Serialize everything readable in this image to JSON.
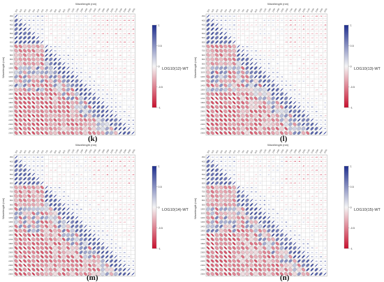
{
  "figure": {
    "panels": [
      {
        "label": "(k)",
        "legend_title": "LOG10(12)-WT"
      },
      {
        "label": "(l)",
        "legend_title": "LOG10(13)-WT"
      },
      {
        "label": "(m)",
        "legend_title": "LOG10(14)-WT"
      },
      {
        "label": "(n)",
        "legend_title": "LOG10(15)-WT"
      }
    ],
    "x_axis_title": "Wavelength (nm)",
    "y_axis_title": "Wavelength (nm)",
    "wavelengths": [
      "350",
      "400",
      "450",
      "500",
      "550",
      "600",
      "650",
      "700",
      "750",
      "800",
      "850",
      "900",
      "1000",
      "1100",
      "1200",
      "1300",
      "1400",
      "1500",
      "1600",
      "1700",
      "1800",
      "1900",
      "2000",
      "2100",
      "2200",
      "2300",
      "2400",
      "2500"
    ],
    "colorbar_ticks": [
      "1",
      "0.5",
      "0",
      "-0.5",
      "-1"
    ],
    "colors": {
      "positive": "#1f2f8f",
      "neutral": "#f4f4f4",
      "negative": "#c8102e"
    }
  },
  "chart_data": [
    {
      "type": "heatmap",
      "title": "",
      "legend_title": "LOG10(12)-WT",
      "xlabel": "Wavelength (nm)",
      "ylabel": "Wavelength (nm)",
      "color_range": [
        -1,
        1
      ],
      "matrix_size": 28,
      "lower_triangle": "ellipses",
      "upper_triangle": "correlation coefficients",
      "seed": 11
    },
    {
      "type": "heatmap",
      "title": "",
      "legend_title": "LOG10(13)-WT",
      "xlabel": "Wavelength (nm)",
      "ylabel": "Wavelength (nm)",
      "color_range": [
        -1,
        1
      ],
      "matrix_size": 28,
      "lower_triangle": "ellipses",
      "upper_triangle": "correlation coefficients",
      "seed": 23
    },
    {
      "type": "heatmap",
      "title": "",
      "legend_title": "LOG10(14)-WT",
      "xlabel": "Wavelength (nm)",
      "ylabel": "Wavelength (nm)",
      "color_range": [
        -1,
        1
      ],
      "matrix_size": 28,
      "lower_triangle": "ellipses",
      "upper_triangle": "correlation coefficients",
      "seed": 37
    },
    {
      "type": "heatmap",
      "title": "",
      "legend_title": "LOG10(15)-WT",
      "xlabel": "Wavelength (nm)",
      "ylabel": "Wavelength (nm)",
      "color_range": [
        -1,
        1
      ],
      "matrix_size": 28,
      "lower_triangle": "ellipses",
      "upper_triangle": "correlation coefficients",
      "seed": 53
    }
  ]
}
